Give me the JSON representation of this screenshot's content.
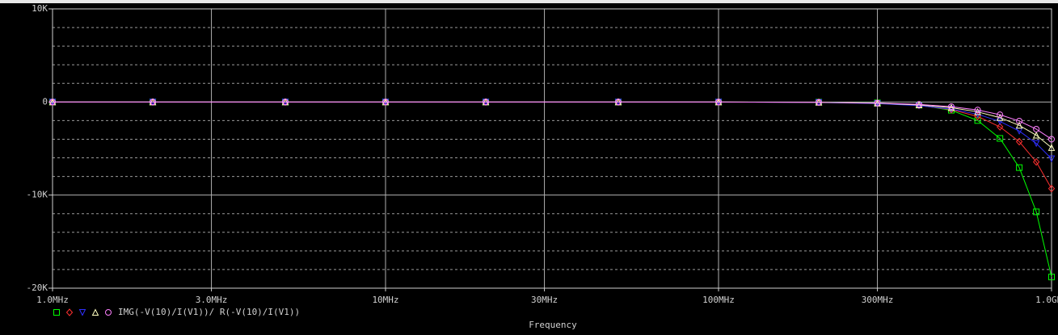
{
  "chart_data": {
    "type": "line",
    "x_label": "Frequency",
    "legend_label": "IMG(-V(10)/I(V1))/ R(-V(10)/I(V1))",
    "log_x": true,
    "grid": true,
    "xlim": [
      1000000,
      1000000000
    ],
    "xticks": [
      {
        "value": 1000000,
        "label": "1.0MHz"
      },
      {
        "value": 3000000,
        "label": "3.0MHz"
      },
      {
        "value": 10000000,
        "label": "10MHz"
      },
      {
        "value": 30000000,
        "label": "30MHz"
      },
      {
        "value": 100000000,
        "label": "100MHz"
      },
      {
        "value": 300000000,
        "label": "300MHz"
      },
      {
        "value": 1000000000,
        "label": "1.0GHz"
      }
    ],
    "ylim": [
      -20000,
      10000
    ],
    "yticks": [
      {
        "value": 10000,
        "label": "10K"
      },
      0,
      {
        "value": -10000,
        "label": "-10K"
      },
      {
        "value": -20000,
        "label": "-20K"
      }
    ],
    "x": [
      1000000,
      2000000,
      5000000,
      10000000,
      20000000,
      50000000,
      100000000,
      200000000,
      300000000,
      400000000,
      500000000,
      600000000,
      700000000,
      800000000,
      900000000,
      1000000000
    ],
    "series": [
      {
        "color": "#00ff00",
        "marker": "square",
        "values": [
          0,
          0,
          0,
          0,
          0,
          0,
          -1,
          -16,
          -94,
          -334,
          -888,
          -1990,
          -3910,
          -7050,
          -11800,
          -18800
        ]
      },
      {
        "color": "#ff3030",
        "marker": "diamond",
        "values": [
          0,
          0,
          0,
          0,
          0,
          0,
          -1,
          -33,
          -138,
          -375,
          -822,
          -1550,
          -2670,
          -4260,
          -6440,
          -9300
        ]
      },
      {
        "color": "#3030ff",
        "marker": "triangle-down",
        "values": [
          0,
          0,
          0,
          0,
          0,
          0,
          -6,
          -49,
          -165,
          -390,
          -763,
          -1320,
          -2090,
          -3120,
          -4450,
          -6100
        ]
      },
      {
        "color": "#ffffc0",
        "marker": "triangle-up",
        "values": [
          0,
          0,
          0,
          0,
          0,
          0,
          -5,
          -39,
          -132,
          -314,
          -613,
          -1060,
          -1680,
          -2510,
          -3570,
          -4900
        ]
      },
      {
        "color": "#ff80ff",
        "marker": "circle",
        "values": [
          0,
          0,
          0,
          0,
          0,
          0,
          -4,
          -32,
          -108,
          -256,
          -500,
          -864,
          -1372,
          -2048,
          -2916,
          -4000
        ]
      }
    ]
  }
}
